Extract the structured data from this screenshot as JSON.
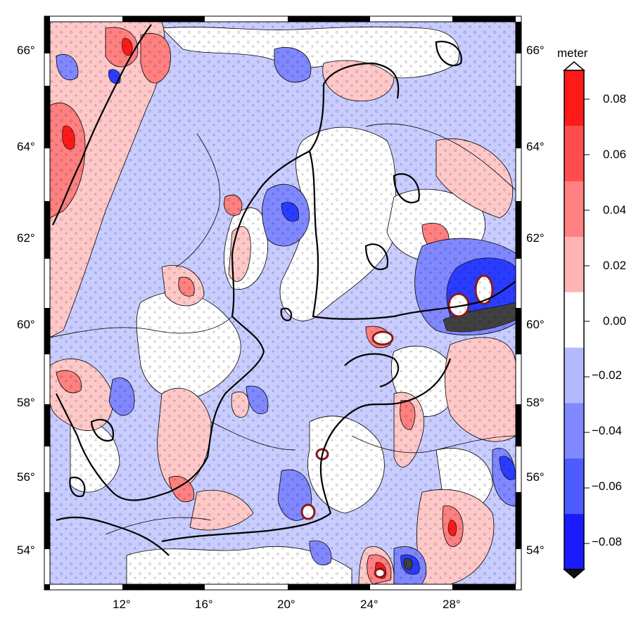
{
  "map": {
    "lon_ticks": [
      "12°",
      "16°",
      "20°",
      "24°",
      "28°"
    ],
    "lat_ticks": [
      "66°",
      "64°",
      "62°",
      "60°",
      "58°",
      "56°",
      "54°"
    ],
    "lon_range": [
      8.5,
      32.0
    ],
    "lat_range": [
      52.9,
      66.7
    ],
    "fill_colors": {
      "strong_positive": "#ff1a1a",
      "moderate_positive": "#ff8080",
      "weak_positive": "#ffc8c8",
      "neutral": "#ffffff",
      "weak_negative": "#c8ccff",
      "moderate_negative": "#8088ff",
      "strong_negative": "#2a3cff",
      "extreme": "#404040",
      "contour": "#000000",
      "coastline": "#000000"
    }
  },
  "colorbar": {
    "unit": "meter",
    "tick_labels": [
      "0.08",
      "0.06",
      "0.04",
      "0.02",
      "0.00",
      "−0.02",
      "−0.04",
      "−0.06",
      "−0.08"
    ],
    "levels": [
      -0.09,
      -0.07,
      -0.05,
      -0.03,
      -0.01,
      0.01,
      0.03,
      0.05,
      0.07,
      0.09
    ],
    "colors": [
      "#1a1aff",
      "#4d5bff",
      "#8088ff",
      "#b3b8ff",
      "#ffffff",
      "#ffb3b3",
      "#ff8080",
      "#ff4d4d",
      "#ff1a1a"
    ]
  }
}
